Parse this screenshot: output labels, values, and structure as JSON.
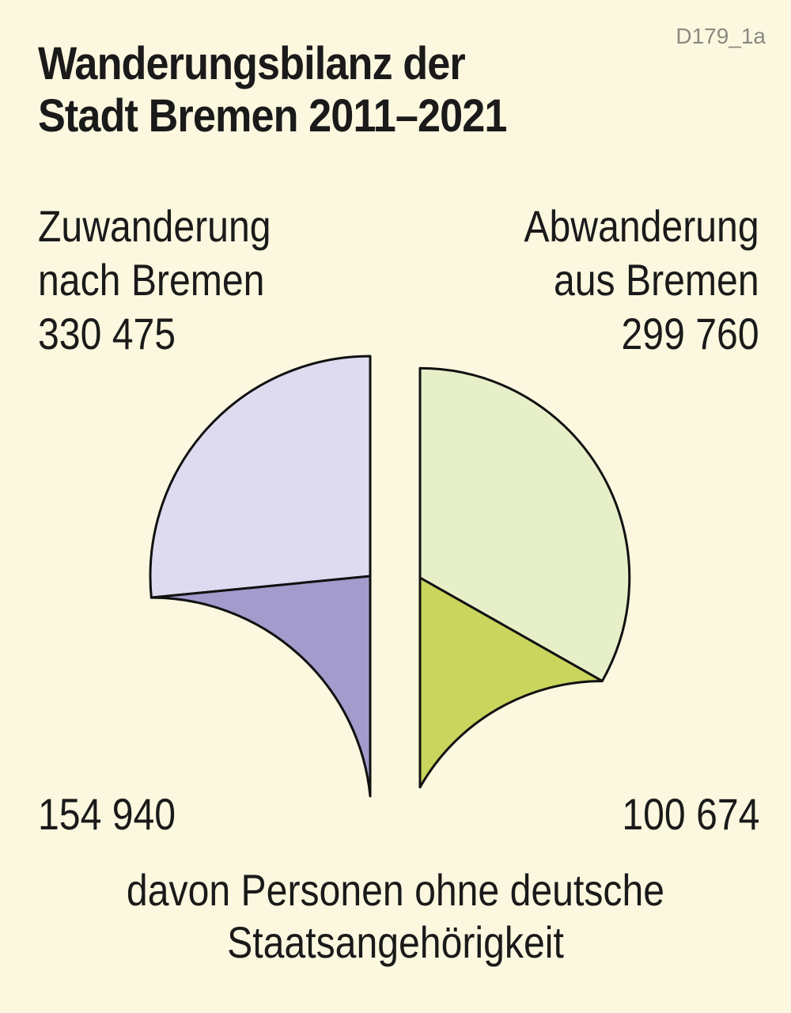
{
  "code": "D179_1a",
  "chart_data": {
    "type": "pie",
    "title": "Wanderungsbilanz der Stadt Bremen 2011–2021",
    "title_lines": [
      "Wanderungsbilanz der",
      "Stadt Bremen 2011–2021"
    ],
    "series": [
      {
        "name": "Zuwanderung nach Bremen",
        "name_lines": [
          "Zuwanderung",
          "nach Bremen"
        ],
        "total": 330475,
        "total_label": "330 475",
        "subset": 154940,
        "subset_label": "154 940",
        "color_total": "#dedbf1",
        "color_subset": "#a39bcc"
      },
      {
        "name": "Abwanderung aus Bremen",
        "name_lines": [
          "Abwanderung",
          "aus Bremen"
        ],
        "total": 299760,
        "total_label": "299 760",
        "subset": 100674,
        "subset_label": "100 674",
        "color_total": "#e7efc9",
        "color_subset": "#c9d55c"
      }
    ],
    "footnote_lines": [
      "davon Personen ohne deutsche",
      "Staatsangehörigkeit"
    ]
  }
}
